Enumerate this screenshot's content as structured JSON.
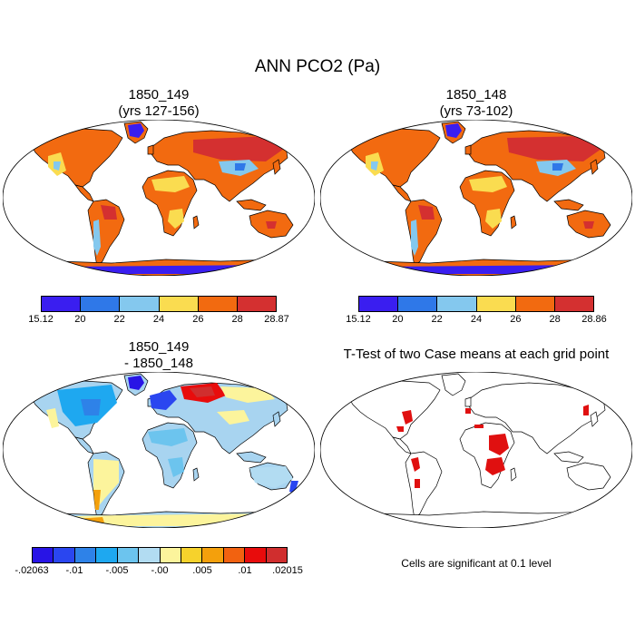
{
  "figure": {
    "title": "ANN PCO2 (Pa)",
    "panels": [
      {
        "id": "case1",
        "title_line1": "1850_149",
        "title_line2": "(yrs 127-156)"
      },
      {
        "id": "case2",
        "title_line1": "1850_148",
        "title_line2": "(yrs 73-102)"
      },
      {
        "id": "diff",
        "title_line1": "1850_149",
        "title_line2": "- 1850_148"
      },
      {
        "id": "ttest",
        "title_line1": "T-Test of two Case means at each grid point"
      }
    ],
    "ttest_note": "Cells are significant at 0.1 level"
  },
  "colorbars": {
    "case1": {
      "colors": [
        "#3a1ef0",
        "#2f78e8",
        "#84c8ee",
        "#fadc50",
        "#f26a10",
        "#d43030"
      ],
      "labels": [
        "15.12",
        "20",
        "22",
        "24",
        "26",
        "28",
        "28.87"
      ]
    },
    "case2": {
      "colors": [
        "#3a1ef0",
        "#2f78e8",
        "#84c8ee",
        "#fadc50",
        "#f26a10",
        "#d43030"
      ],
      "labels": [
        "15.12",
        "20",
        "22",
        "24",
        "26",
        "28",
        "28.86"
      ]
    },
    "diff": {
      "colors": [
        "#2814e6",
        "#2a46f0",
        "#2e82e8",
        "#1ea8f0",
        "#6cc4ee",
        "#b2dcf2",
        "#fcf49c",
        "#f6d22c",
        "#f4a00c",
        "#f26210",
        "#e80c0c",
        "#d02e2e"
      ],
      "labels": [
        "-.02063",
        "-.01",
        "-.005",
        "-.00",
        ".005",
        ".01",
        ".02015"
      ]
    }
  },
  "colors": {
    "land_case_fill": "#f26a10",
    "land_diff_fill": "#a8d4f0",
    "significant": "#e01010",
    "coast": "#000000"
  }
}
